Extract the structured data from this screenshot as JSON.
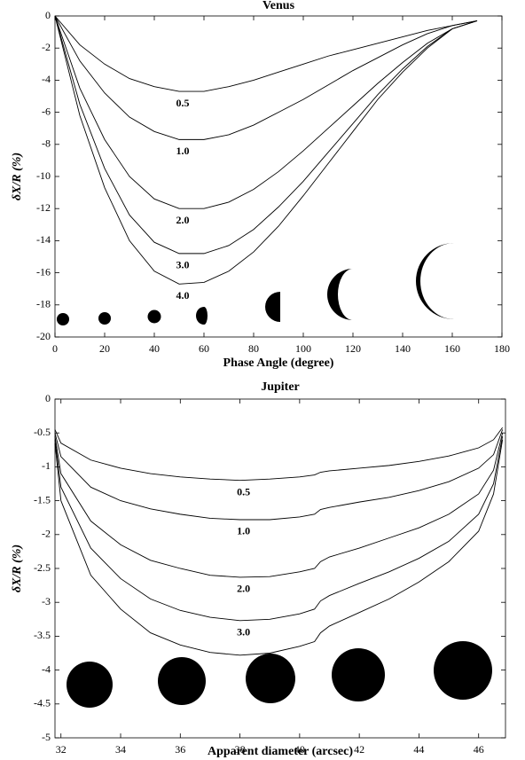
{
  "chart_data": [
    {
      "type": "line",
      "title": "Venus",
      "xlabel": "Phase Angle (degree)",
      "ylabel": "δX/R (%)",
      "x": [
        0,
        10,
        20,
        30,
        40,
        50,
        60,
        70,
        80,
        90,
        100,
        110,
        120,
        130,
        140,
        150,
        160,
        170
      ],
      "series": [
        {
          "name": "0.5",
          "color": "#000000",
          "values": [
            0,
            -1.8,
            -3.0,
            -3.9,
            -4.4,
            -4.7,
            -4.7,
            -4.4,
            -4.0,
            -3.5,
            -3.0,
            -2.5,
            -2.1,
            -1.7,
            -1.3,
            -0.9,
            -0.6,
            -0.3
          ]
        },
        {
          "name": "1.0",
          "color": "#000000",
          "values": [
            0,
            -2.8,
            -4.8,
            -6.3,
            -7.2,
            -7.7,
            -7.7,
            -7.4,
            -6.8,
            -6.0,
            -5.2,
            -4.3,
            -3.4,
            -2.6,
            -1.8,
            -1.1,
            -0.6,
            -0.3
          ]
        },
        {
          "name": "2.0",
          "color": "#000000",
          "values": [
            0,
            -4.5,
            -7.7,
            -10.0,
            -11.4,
            -12.0,
            -12.0,
            -11.6,
            -10.8,
            -9.7,
            -8.4,
            -7.0,
            -5.6,
            -4.2,
            -2.9,
            -1.7,
            -0.8,
            -0.3
          ]
        },
        {
          "name": "3.0",
          "color": "#000000",
          "values": [
            0,
            -5.5,
            -9.5,
            -12.4,
            -14.1,
            -14.8,
            -14.8,
            -14.3,
            -13.3,
            -11.9,
            -10.3,
            -8.5,
            -6.7,
            -4.9,
            -3.3,
            -1.9,
            -0.8,
            -0.3
          ]
        },
        {
          "name": "4.0",
          "color": "#000000",
          "values": [
            0,
            -6.2,
            -10.7,
            -14.0,
            -15.9,
            -16.7,
            -16.6,
            -15.9,
            -14.7,
            -13.1,
            -11.2,
            -9.2,
            -7.2,
            -5.2,
            -3.5,
            -2.0,
            -0.8,
            -0.3
          ]
        }
      ],
      "xlim": [
        0,
        180
      ],
      "xticks": [
        0,
        20,
        40,
        60,
        80,
        100,
        120,
        140,
        160,
        180
      ],
      "ylim": [
        -20,
        0
      ],
      "yticks": [
        -20,
        -18,
        -16,
        -14,
        -12,
        -10,
        -8,
        -6,
        -4,
        -2,
        0
      ],
      "grid": false
    },
    {
      "type": "line",
      "title": "Jupiter",
      "xlabel": "Apparent diameter (arcsec)",
      "ylabel": "δX/R (%)",
      "x": [
        31.8,
        32,
        33,
        34,
        35,
        36,
        37,
        38,
        39,
        40,
        40.5,
        40.7,
        41,
        42,
        43,
        44,
        45,
        46,
        46.5,
        46.8
      ],
      "series": [
        {
          "name": "0.5",
          "color": "#000000",
          "values": [
            -0.45,
            -0.65,
            -0.9,
            -1.02,
            -1.1,
            -1.15,
            -1.18,
            -1.2,
            -1.18,
            -1.15,
            -1.12,
            -1.08,
            -1.06,
            -1.02,
            -0.98,
            -0.92,
            -0.84,
            -0.72,
            -0.6,
            -0.42
          ]
        },
        {
          "name": "1.0",
          "color": "#000000",
          "values": [
            -0.5,
            -0.85,
            -1.3,
            -1.5,
            -1.62,
            -1.7,
            -1.76,
            -1.78,
            -1.78,
            -1.74,
            -1.7,
            -1.63,
            -1.6,
            -1.52,
            -1.45,
            -1.35,
            -1.22,
            -1.02,
            -0.82,
            -0.45
          ]
        },
        {
          "name": "2.0",
          "color": "#000000",
          "values": [
            -0.55,
            -1.1,
            -1.8,
            -2.15,
            -2.38,
            -2.5,
            -2.6,
            -2.63,
            -2.62,
            -2.55,
            -2.5,
            -2.4,
            -2.33,
            -2.2,
            -2.05,
            -1.9,
            -1.7,
            -1.4,
            -1.05,
            -0.5
          ]
        },
        {
          "name": "3.0",
          "color": "#000000",
          "values": [
            -0.6,
            -1.3,
            -2.2,
            -2.65,
            -2.95,
            -3.12,
            -3.22,
            -3.27,
            -3.25,
            -3.17,
            -3.1,
            -2.98,
            -2.9,
            -2.72,
            -2.55,
            -2.35,
            -2.1,
            -1.7,
            -1.25,
            -0.55
          ]
        },
        {
          "name": null,
          "color": "#000000",
          "values": [
            -0.65,
            -1.5,
            -2.6,
            -3.1,
            -3.45,
            -3.63,
            -3.74,
            -3.78,
            -3.75,
            -3.65,
            -3.58,
            -3.45,
            -3.35,
            -3.15,
            -2.95,
            -2.7,
            -2.4,
            -1.95,
            -1.4,
            -0.6
          ]
        }
      ],
      "xlim": [
        31.8,
        46.9
      ],
      "xticks": [
        32,
        34,
        36,
        38,
        40,
        42,
        44,
        46
      ],
      "ylim": [
        -5,
        0
      ],
      "yticks": [
        -5,
        -4.5,
        -4,
        -3.5,
        -3,
        -2.5,
        -2,
        -1.5,
        -1,
        -0.5,
        0
      ],
      "grid": false
    }
  ]
}
